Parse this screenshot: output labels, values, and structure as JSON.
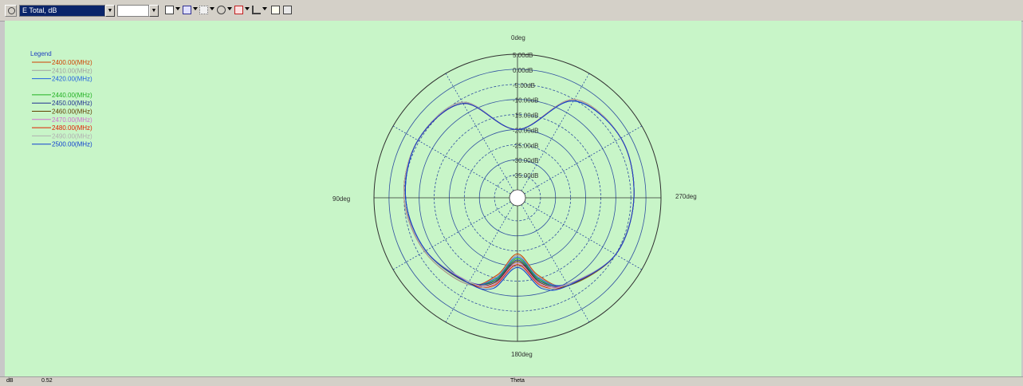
{
  "toolbar": {
    "quantity_select": "E Total, dB",
    "secondary_select": "",
    "icons": [
      "refresh-icon",
      "chart-type-icon",
      "trace-icon",
      "grid-icon",
      "polar-icon",
      "marker-icon",
      "scale-icon",
      "copy-icon",
      "print-icon"
    ]
  },
  "chart_data": {
    "type": "polar",
    "legend_title": "Legend",
    "legend_placement": "top-left",
    "radial_unit": "dB",
    "radial_ticks": [
      "5.00dB",
      "0.00dB",
      "-5.00dB",
      "-10.00dB",
      "-15.00dB",
      "-20.00dB",
      "-25.00dB",
      "-30.00dB",
      "-35.00dB"
    ],
    "radial_range": [
      -40,
      5
    ],
    "angle_labels": [
      "0deg",
      "90deg",
      "180deg",
      "270deg"
    ],
    "angle_ticks_deg": [
      0,
      90,
      180,
      270
    ],
    "angles_deg": [
      0,
      30,
      60,
      90,
      120,
      150,
      165,
      180,
      195,
      210,
      240,
      270,
      300,
      330
    ],
    "series": [
      {
        "name": "2400.00(MHz)",
        "color": "#d04000",
        "values": [
          -20,
          -6,
          -4.5,
          -5,
          -7,
          -9.5,
          -16,
          -24,
          -16,
          -9,
          -5,
          -4,
          -3,
          -5
        ]
      },
      {
        "name": "2410.00(MHz)",
        "color": "#a0a0a0",
        "values": [
          -20,
          -6,
          -4.5,
          -5,
          -7,
          -9.5,
          -15.5,
          -23.5,
          -15.5,
          -9,
          -5,
          -4,
          -3,
          -5
        ]
      },
      {
        "name": "2420.00(MHz)",
        "color": "#2060e0",
        "values": [
          -20,
          -6.5,
          -4.5,
          -5.5,
          -7.5,
          -10,
          -15,
          -23,
          -15,
          -9.5,
          -5,
          -4,
          -3,
          -5.5
        ]
      },
      {
        "name": "",
        "color": "#00000000",
        "values": []
      },
      {
        "name": "2440.00(MHz)",
        "color": "#20b020",
        "values": [
          -20,
          -6,
          -4.5,
          -5,
          -7.5,
          -10,
          -14.5,
          -22.5,
          -14.5,
          -9,
          -5,
          -4,
          -3,
          -5
        ]
      },
      {
        "name": "2450.00(MHz)",
        "color": "#203090",
        "values": [
          -20,
          -6.5,
          -4.5,
          -5.5,
          -7.5,
          -10.5,
          -14,
          -22,
          -14,
          -9.5,
          -5,
          -4,
          -3,
          -5.5
        ]
      },
      {
        "name": "2460.00(MHz)",
        "color": "#604000",
        "values": [
          -20,
          -6,
          -4.5,
          -5,
          -7.5,
          -10,
          -13.5,
          -21.5,
          -13.5,
          -9,
          -5,
          -4,
          -3,
          -5
        ]
      },
      {
        "name": "2470.00(MHz)",
        "color": "#d070d0",
        "values": [
          -20,
          -6,
          -4.5,
          -5,
          -7.5,
          -10.5,
          -13,
          -21,
          -13,
          -9.5,
          -5,
          -4,
          -3,
          -5
        ]
      },
      {
        "name": "2480.00(MHz)",
        "color": "#e02000",
        "values": [
          -20,
          -6.5,
          -4.5,
          -5,
          -7.5,
          -10,
          -12.5,
          -20.5,
          -12.5,
          -9,
          -5,
          -4,
          -3,
          -5
        ]
      },
      {
        "name": "2490.00(MHz)",
        "color": "#b0b0b0",
        "values": [
          -20,
          -6,
          -4.5,
          -5,
          -7.5,
          -10.5,
          -12,
          -20,
          -12,
          -9.5,
          -5,
          -4,
          -3,
          -5
        ]
      },
      {
        "name": "2500.00(MHz)",
        "color": "#1040d0",
        "values": [
          -20,
          -6.5,
          -4.5,
          -5.5,
          -7.5,
          -10,
          -11.5,
          -19.5,
          -11.5,
          -9,
          -5,
          -4,
          -3,
          -5.5
        ]
      }
    ],
    "background": "#c8f5c8",
    "grid": true
  },
  "status": {
    "unit": "dB",
    "value": "0.52",
    "axis": "Theta"
  }
}
